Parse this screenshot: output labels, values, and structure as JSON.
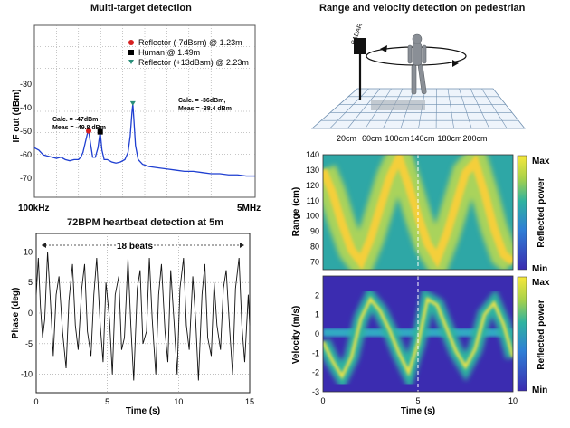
{
  "colors": {
    "spectrum_trace": "#1f3fd1",
    "spectrum_grid": "#8e8e8e",
    "red_marker": "#d62020",
    "black_marker": "#000000",
    "green_marker": "#2a8f7a",
    "colormap_low": "#3b2cb0",
    "colormap_mid": "#2fb3a0",
    "colormap_high": "#f7e83a",
    "dashed_line": "#ffffff"
  },
  "chart_data": [
    {
      "type": "line",
      "title": "Multi-target detection",
      "ylabel": "IF out (dBm)",
      "x_start_label": "100kHz",
      "x_end_label": "5MHz",
      "yticks": [
        "-30",
        "-40",
        "-50",
        "-60",
        "-70"
      ],
      "ylim": [
        -78,
        -5
      ],
      "legend": [
        {
          "label": "Reflector (-7dBsm) @ 1.23m",
          "marker": "circle",
          "color": "#d62020"
        },
        {
          "label": "Human @ 1.49m",
          "marker": "square",
          "color": "#000000"
        },
        {
          "label": "Reflector (+13dBsm) @ 2.23m",
          "marker": "triangle",
          "color": "#2a8f7a"
        }
      ],
      "annotations": [
        {
          "line1": "Calc. = -47dBm",
          "line2": "Meas = -49.8 dBm"
        },
        {
          "line1": "Calc. = -36dBm,",
          "line2": "Meas = -38.4 dBm"
        }
      ],
      "markers": [
        {
          "x": 1.23,
          "y": -49.8
        },
        {
          "x": 1.49,
          "y": -50.2
        },
        {
          "x": 2.23,
          "y": -38.4
        }
      ],
      "series": [
        {
          "x": [
            0,
            0.1,
            0.2,
            0.3,
            0.4,
            0.5,
            0.6,
            0.7,
            0.8,
            0.9,
            1.0,
            1.05,
            1.1,
            1.15,
            1.2,
            1.23,
            1.27,
            1.32,
            1.38,
            1.44,
            1.49,
            1.53,
            1.58,
            1.65,
            1.75,
            1.85,
            1.95,
            2.05,
            2.12,
            2.17,
            2.21,
            2.23,
            2.25,
            2.29,
            2.35,
            2.45,
            2.6,
            2.8,
            3.0,
            3.2,
            3.4,
            3.6,
            3.8,
            4.0,
            4.2,
            4.4,
            4.6,
            4.8,
            5.0
          ],
          "y": [
            -57,
            -58,
            -60,
            -60.5,
            -61,
            -61.5,
            -61,
            -62,
            -62.5,
            -62,
            -62,
            -61,
            -59,
            -55,
            -51,
            -49.8,
            -55,
            -61,
            -61,
            -57,
            -50.2,
            -58,
            -62,
            -62,
            -63,
            -63.5,
            -63,
            -62,
            -59,
            -52,
            -42,
            -38.4,
            -44,
            -56,
            -62,
            -64,
            -65,
            -65.5,
            -66,
            -66.5,
            -67,
            -67,
            -67.5,
            -68,
            -68,
            -68.5,
            -68.5,
            -69,
            -69
          ]
        }
      ]
    },
    {
      "type": "line",
      "title": "72BPM heartbeat detection at 5m",
      "xlabel": "Time (s)",
      "ylabel": "Phase (deg)",
      "annotation": "18 beats",
      "xlim": [
        0,
        15
      ],
      "ylim": [
        -13,
        13
      ],
      "xticks": [
        "0",
        "5",
        "10",
        "15"
      ],
      "yticks": [
        "10",
        "5",
        "0",
        "-5",
        "-10"
      ],
      "series": [
        {
          "x": [
            0,
            0.15,
            0.3,
            0.45,
            0.6,
            0.8,
            1.0,
            1.2,
            1.4,
            1.6,
            1.85,
            2.1,
            2.3,
            2.55,
            2.75,
            2.95,
            3.2,
            3.4,
            3.6,
            3.85,
            4.05,
            4.25,
            4.5,
            4.7,
            4.9,
            5.15,
            5.35,
            5.55,
            5.8,
            6.0,
            6.2,
            6.45,
            6.65,
            6.85,
            7.1,
            7.3,
            7.5,
            7.75,
            7.95,
            8.15,
            8.4,
            8.6,
            8.8,
            9.05,
            9.25,
            9.45,
            9.7,
            9.9,
            10.1,
            10.35,
            10.55,
            10.75,
            11.0,
            11.2,
            11.4,
            11.65,
            11.85,
            12.05,
            12.3,
            12.5,
            12.7,
            12.95,
            13.15,
            13.35,
            13.6,
            13.8,
            14.0,
            14.25,
            14.45,
            14.65,
            14.9,
            15.0
          ],
          "y": [
            3,
            9,
            1,
            -4,
            -1,
            10,
            2,
            -7,
            3,
            6,
            -3,
            -9,
            2,
            8,
            -2,
            -6,
            4,
            8,
            -3,
            -7,
            3,
            9,
            -2,
            -8,
            5,
            -1,
            -10,
            3,
            6,
            -6,
            -4,
            9,
            -2,
            -11,
            4,
            7,
            -5,
            -3,
            9,
            -1,
            -10,
            3,
            8,
            -3,
            -8,
            7,
            -2,
            -10,
            4,
            9,
            -2,
            -6,
            6,
            -1,
            -11,
            3,
            8,
            -4,
            -7,
            5,
            -2,
            -6,
            4,
            7,
            -3,
            -10,
            4,
            9,
            -2,
            -8,
            3,
            -2
          ]
        }
      ]
    },
    {
      "type": "diagram",
      "title": "Range and velocity detection on pedestrian",
      "radar_label": "RADAR",
      "floor_ticks": [
        "20cm",
        "60cm",
        "100cm",
        "140cm",
        "180cm",
        "200cm"
      ]
    },
    {
      "type": "heatmap",
      "ylabel": "Range (cm)",
      "yticks": [
        "140",
        "130",
        "120",
        "110",
        "100",
        "90",
        "80",
        "70"
      ],
      "ylim": [
        65,
        140
      ],
      "colorbar": {
        "label": "Reflected power",
        "max_label": "Max",
        "min_label": "Min"
      },
      "trace": {
        "x": [
          0,
          0.5,
          1,
          1.5,
          2,
          2.5,
          3,
          3.5,
          4,
          4.5,
          5,
          5.5,
          6,
          6.5,
          7,
          7.5,
          8,
          8.5,
          9,
          9.5,
          10
        ],
        "y": [
          130,
          115,
          95,
          78,
          70,
          85,
          105,
          125,
          138,
          120,
          100,
          82,
          72,
          88,
          108,
          128,
          135,
          115,
          92,
          75,
          70
        ]
      }
    },
    {
      "type": "heatmap",
      "xlabel": "Time (s)",
      "ylabel": "Velocity (m/s)",
      "xlim": [
        0,
        10
      ],
      "ylim": [
        -3,
        3
      ],
      "xticks": [
        "0",
        "5",
        "10"
      ],
      "yticks": [
        "2",
        "1",
        "0",
        "-1",
        "-2",
        "-3"
      ],
      "colorbar": {
        "label": "Reflected power",
        "max_label": "Max",
        "min_label": "Min"
      },
      "trace": {
        "x": [
          0,
          0.5,
          1,
          1.5,
          2,
          2.5,
          3,
          3.5,
          4,
          4.5,
          5,
          5.5,
          6,
          6.5,
          7,
          7.5,
          8,
          8.5,
          9,
          9.5,
          10
        ],
        "y": [
          -0.4,
          -1.4,
          -2.2,
          -1.2,
          0.8,
          1.8,
          1.2,
          0.2,
          -1.0,
          -2.0,
          -0.5,
          1.8,
          1.5,
          0.3,
          -0.9,
          -1.7,
          -0.8,
          1.0,
          1.6,
          0.5,
          -1.2
        ]
      }
    }
  ]
}
